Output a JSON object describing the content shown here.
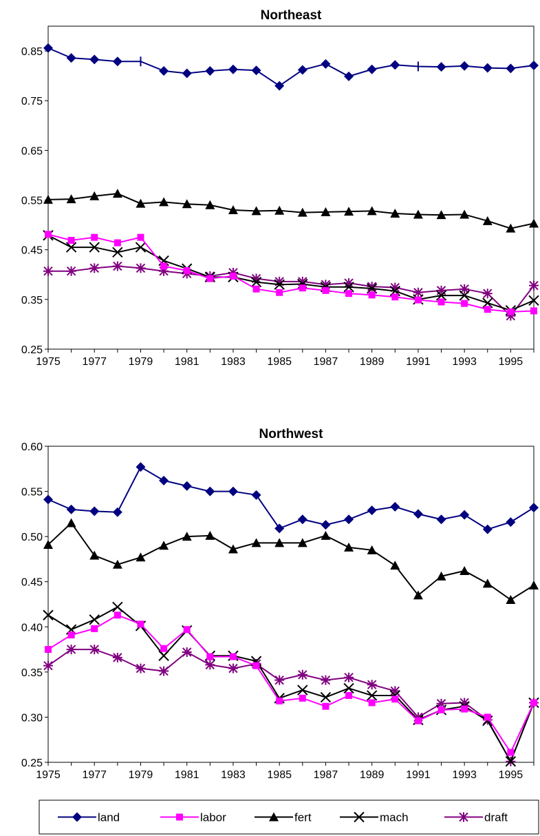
{
  "chart_data": [
    {
      "type": "line",
      "title": "Northeast",
      "xlabel": "",
      "ylabel": "",
      "x": [
        1975,
        1976,
        1977,
        1978,
        1979,
        1980,
        1981,
        1982,
        1983,
        1984,
        1985,
        1986,
        1987,
        1988,
        1989,
        1990,
        1991,
        1992,
        1993,
        1994,
        1995,
        1996
      ],
      "x_tick_labels": [
        "1975",
        "1977",
        "1979",
        "1981",
        "1983",
        "1985",
        "1987",
        "1989",
        "1991",
        "1993",
        "1995"
      ],
      "ylim": [
        0.25,
        0.9
      ],
      "y_ticks": [
        0.25,
        0.35,
        0.45,
        0.55,
        0.65,
        0.75,
        0.85
      ],
      "y_tick_labels": [
        "0.25",
        "0.35",
        "0.45",
        "0.55",
        "0.65",
        "0.75",
        "0.85"
      ],
      "grid": false,
      "series": [
        {
          "name": "land",
          "values": [
            0.856,
            0.836,
            0.833,
            0.829,
            0.829,
            0.81,
            0.805,
            0.81,
            0.813,
            0.811,
            0.78,
            0.812,
            0.824,
            0.799,
            0.813,
            0.822,
            0.819,
            0.818,
            0.82,
            0.816,
            0.815,
            0.821
          ],
          "markers": [
            "diamond",
            "diamond",
            "diamond",
            "diamond",
            "bar",
            "diamond",
            "diamond",
            "diamond",
            "diamond",
            "diamond",
            "diamond",
            "diamond",
            "diamond",
            "diamond",
            "diamond",
            "diamond",
            "bar",
            "diamond",
            "diamond",
            "diamond",
            "diamond",
            "diamond"
          ]
        },
        {
          "name": "labor",
          "values": [
            0.481,
            0.469,
            0.475,
            0.464,
            0.475,
            0.417,
            0.408,
            0.392,
            0.397,
            0.371,
            0.364,
            0.373,
            0.368,
            0.362,
            0.359,
            0.355,
            0.349,
            0.345,
            0.342,
            0.33,
            0.325,
            0.327
          ]
        },
        {
          "name": "fert",
          "values": [
            0.551,
            0.552,
            0.558,
            0.563,
            0.543,
            0.546,
            0.542,
            0.54,
            0.53,
            0.528,
            0.529,
            0.525,
            0.526,
            0.527,
            0.528,
            0.523,
            0.521,
            0.52,
            0.521,
            0.508,
            0.493,
            0.503
          ]
        },
        {
          "name": "mach",
          "values": [
            0.479,
            0.455,
            0.455,
            0.445,
            0.455,
            0.428,
            0.412,
            0.395,
            0.395,
            0.385,
            0.38,
            0.381,
            0.375,
            0.375,
            0.372,
            0.367,
            0.35,
            0.358,
            0.358,
            0.343,
            0.328,
            0.348
          ]
        },
        {
          "name": "draft",
          "values": [
            0.407,
            0.407,
            0.413,
            0.417,
            0.413,
            0.407,
            0.402,
            0.397,
            0.404,
            0.392,
            0.386,
            0.386,
            0.38,
            0.383,
            0.376,
            0.374,
            0.364,
            0.368,
            0.371,
            0.362,
            0.317,
            0.378
          ],
          "draw_last_segment": true
        }
      ]
    },
    {
      "type": "line",
      "title": "Northwest",
      "xlabel": "",
      "ylabel": "",
      "x": [
        1975,
        1976,
        1977,
        1978,
        1979,
        1980,
        1981,
        1982,
        1983,
        1984,
        1985,
        1986,
        1987,
        1988,
        1989,
        1990,
        1991,
        1992,
        1993,
        1994,
        1995,
        1996
      ],
      "x_tick_labels": [
        "1975",
        "1977",
        "1979",
        "1981",
        "1983",
        "1985",
        "1987",
        "1989",
        "1991",
        "1993",
        "1995"
      ],
      "ylim": [
        0.25,
        0.6
      ],
      "y_ticks": [
        0.25,
        0.3,
        0.35,
        0.4,
        0.45,
        0.5,
        0.55,
        0.6
      ],
      "y_tick_labels": [
        "0.25",
        "0.30",
        "0.35",
        "0.40",
        "0.45",
        "0.50",
        "0.55",
        "0.60"
      ],
      "grid": false,
      "series": [
        {
          "name": "land",
          "values": [
            0.541,
            0.53,
            0.528,
            0.527,
            0.577,
            0.562,
            0.556,
            0.55,
            0.55,
            0.546,
            0.509,
            0.519,
            0.513,
            0.519,
            0.529,
            0.533,
            0.525,
            0.519,
            0.524,
            0.508,
            0.516,
            0.532
          ]
        },
        {
          "name": "labor",
          "values": [
            0.375,
            0.391,
            0.398,
            0.413,
            0.403,
            0.376,
            0.397,
            0.367,
            0.367,
            0.357,
            0.318,
            0.321,
            0.312,
            0.324,
            0.316,
            0.32,
            0.296,
            0.308,
            0.309,
            0.3,
            0.261,
            0.316
          ]
        },
        {
          "name": "fert",
          "values": [
            0.491,
            0.515,
            0.479,
            0.469,
            0.477,
            0.49,
            0.5,
            0.501,
            0.486,
            0.493,
            0.493,
            0.493,
            0.501,
            0.488,
            0.485,
            0.468,
            0.435,
            0.456,
            0.462,
            0.448,
            0.43,
            0.446
          ]
        },
        {
          "name": "mach",
          "values": [
            0.413,
            0.397,
            0.408,
            0.422,
            0.401,
            0.368,
            0.396,
            0.368,
            0.368,
            0.362,
            0.321,
            0.33,
            0.322,
            0.332,
            0.324,
            0.324,
            0.297,
            0.308,
            0.312,
            0.296,
            0.251,
            0.316
          ]
        },
        {
          "name": "draft",
          "values": [
            0.357,
            0.375,
            0.375,
            0.366,
            0.354,
            0.351,
            0.372,
            0.358,
            0.354,
            0.359,
            0.341,
            0.347,
            0.341,
            0.344,
            0.336,
            0.329,
            0.3,
            0.315,
            0.316,
            0.297,
            0.251,
            0.316
          ]
        }
      ]
    }
  ],
  "legend": {
    "position": "bottom",
    "items": [
      {
        "name": "land",
        "color": "#000080",
        "marker": "diamond"
      },
      {
        "name": "labor",
        "color": "#ff00ff",
        "marker": "square"
      },
      {
        "name": "fert",
        "color": "#000000",
        "marker": "triangle"
      },
      {
        "name": "mach",
        "color": "#000000",
        "marker": "x"
      },
      {
        "name": "draft",
        "color": "#800080",
        "marker": "star"
      }
    ]
  },
  "series_styles": {
    "land": {
      "color": "#000080",
      "marker": "diamond"
    },
    "labor": {
      "color": "#ff00ff",
      "marker": "square"
    },
    "fert": {
      "color": "#000000",
      "marker": "triangle"
    },
    "mach": {
      "color": "#000000",
      "marker": "x"
    },
    "draft": {
      "color": "#800080",
      "marker": "star"
    }
  }
}
